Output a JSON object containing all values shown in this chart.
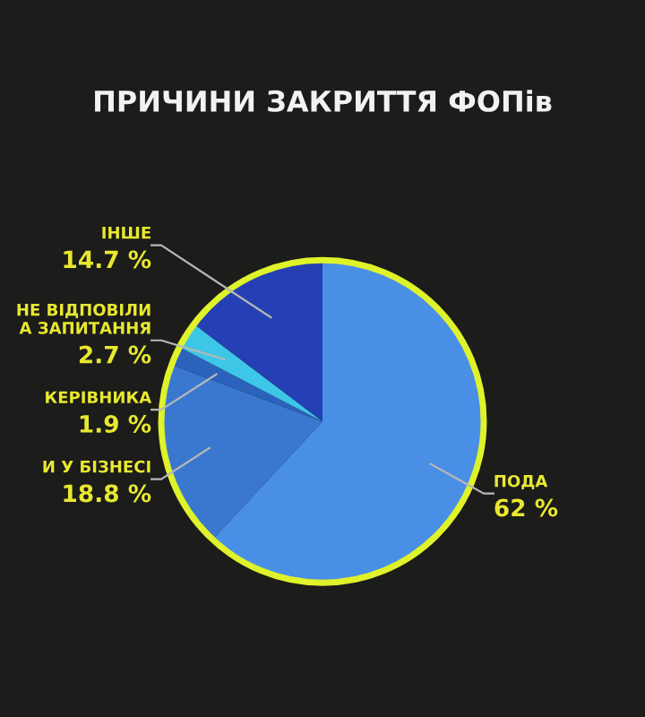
{
  "chart_data": {
    "type": "pie",
    "title": "ПРИЧИНИ ЗАКРИТТЯ ФОПів",
    "categories": [
      "ПОДА",
      "И У БІЗНЕСІ",
      "КЕРІВНИКА",
      "НЕ ВІДПОВІЛИ\nА ЗАПИТАННЯ",
      "ІНШЕ"
    ],
    "values": [
      62,
      18.8,
      1.9,
      2.7,
      14.7
    ],
    "value_labels": [
      "62 %",
      "18.8 %",
      "1.9 %",
      "2.7 %",
      "14.7 %"
    ],
    "colors": [
      "#4a8fe6",
      "#3a78d0",
      "#2a62bc",
      "#3ec6e6",
      "#2440b4"
    ],
    "legend": false
  }
}
